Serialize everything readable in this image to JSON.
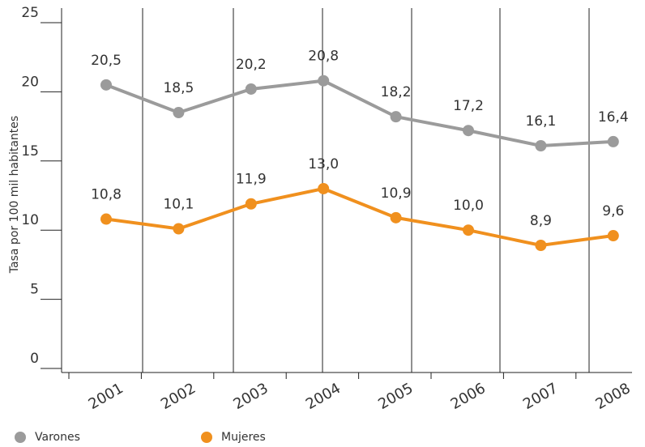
{
  "chart_data": {
    "type": "line",
    "y_label": "Tasa por 100 mil habitantes",
    "categories": [
      "2001",
      "2002",
      "2003",
      "2004",
      "2005",
      "2006",
      "2007",
      "2008"
    ],
    "series": [
      {
        "name": "Varones",
        "color": "#9b9b9b",
        "values": [
          20.5,
          18.5,
          20.2,
          20.8,
          18.2,
          17.2,
          16.1,
          16.4
        ],
        "value_labels": [
          "20,5",
          "18,5",
          "20,2",
          "20,8",
          "18,2",
          "17,2",
          "16,1",
          "16,4"
        ]
      },
      {
        "name": "Mujeres",
        "color": "#f0901e",
        "values": [
          10.8,
          10.1,
          11.9,
          13.0,
          10.9,
          10.0,
          8.9,
          9.6
        ],
        "value_labels": [
          "10,8",
          "10,1",
          "11,9",
          "13,0",
          "10,9",
          "10,0",
          "8,9",
          "9,6"
        ]
      }
    ],
    "ylim": [
      0,
      25
    ],
    "yticks": [
      0,
      5,
      10,
      15,
      20,
      25
    ]
  }
}
